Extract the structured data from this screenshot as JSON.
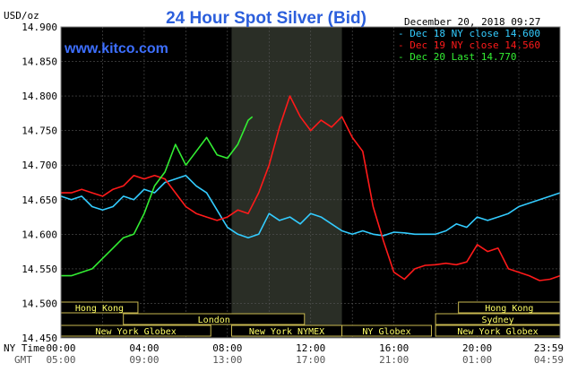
{
  "chart_data": {
    "type": "line",
    "title": "24 Hour Spot Silver (Bid)",
    "unit_label": "USD/oz",
    "timestamp": "December 20, 2018 09:27",
    "watermark": "www.kitco.com",
    "ylim": [
      14.45,
      14.9
    ],
    "y_ticks": [
      "14.900",
      "14.850",
      "14.800",
      "14.750",
      "14.700",
      "14.650",
      "14.600",
      "14.550",
      "14.500",
      "14.450"
    ],
    "x_row_label_ny": "NY Time",
    "x_row_label_gmt": "GMT",
    "x_ticks_ny": [
      "00:00",
      "04:00",
      "08:00",
      "12:00",
      "16:00",
      "20:00",
      "23:59"
    ],
    "x_ticks_gmt": [
      "05:00",
      "09:00",
      "13:00",
      "17:00",
      "21:00",
      "01:00",
      "04:59"
    ],
    "sessions": [
      {
        "name": "Hong Kong",
        "start": 0,
        "end": 3.7,
        "row": 1
      },
      {
        "name": "London",
        "start": 3,
        "end": 11.7,
        "row": 2
      },
      {
        "name": "New York Globex",
        "start": 0,
        "end": 7.2,
        "row": 3
      },
      {
        "name": "New York NYMEX",
        "start": 8.2,
        "end": 13.5,
        "row": 3
      },
      {
        "name": "NY Globex",
        "start": 13.5,
        "end": 17.8,
        "row": 3
      },
      {
        "name": "Hong Kong",
        "start": 19.1,
        "end": 23.98,
        "row": 1
      },
      {
        "name": "Sydney",
        "start": 18,
        "end": 23.98,
        "row": 2
      },
      {
        "name": "New York Globex",
        "start": 18,
        "end": 23.98,
        "row": 3
      }
    ],
    "series": [
      {
        "name": "Dec 18 NY close 14.600",
        "color": "#33ccff",
        "x": [
          0,
          0.5,
          1,
          1.5,
          2,
          2.5,
          3,
          3.5,
          4,
          4.5,
          5,
          5.5,
          6,
          6.5,
          7,
          7.5,
          8,
          8.5,
          9,
          9.5,
          10,
          10.5,
          11,
          11.5,
          12,
          12.5,
          13,
          13.5,
          14,
          14.5,
          15,
          15.5,
          16,
          16.5,
          17,
          17.5,
          18,
          18.5,
          19,
          19.5,
          20,
          20.5,
          21,
          21.5,
          22,
          22.5,
          23,
          23.5,
          23.98
        ],
        "values": [
          14.655,
          14.65,
          14.655,
          14.64,
          14.635,
          14.64,
          14.655,
          14.65,
          14.665,
          14.66,
          14.675,
          14.68,
          14.685,
          14.67,
          14.66,
          14.635,
          14.61,
          14.6,
          14.595,
          14.6,
          14.63,
          14.62,
          14.625,
          14.615,
          14.63,
          14.625,
          14.615,
          14.605,
          14.6,
          14.605,
          14.6,
          14.598,
          14.603,
          14.602,
          14.6,
          14.6,
          14.6,
          14.605,
          14.615,
          14.61,
          14.625,
          14.62,
          14.625,
          14.63,
          14.64,
          14.645,
          14.65,
          14.655,
          14.66
        ]
      },
      {
        "name": "Dec 19 NY close 14.560",
        "color": "#ff1a1a",
        "x": [
          0,
          0.5,
          1,
          1.5,
          2,
          2.5,
          3,
          3.5,
          4,
          4.5,
          5,
          5.5,
          6,
          6.5,
          7,
          7.5,
          8,
          8.5,
          9,
          9.5,
          10,
          10.5,
          11,
          11.5,
          12,
          12.5,
          13,
          13.5,
          14,
          14.5,
          15,
          15.5,
          16,
          16.5,
          17,
          17.5,
          18,
          18.5,
          19,
          19.5,
          20,
          20.5,
          21,
          21.5,
          22,
          22.5,
          23,
          23.5,
          23.98
        ],
        "values": [
          14.66,
          14.66,
          14.665,
          14.66,
          14.655,
          14.665,
          14.67,
          14.685,
          14.68,
          14.685,
          14.68,
          14.66,
          14.64,
          14.63,
          14.625,
          14.62,
          14.625,
          14.635,
          14.63,
          14.66,
          14.7,
          14.755,
          14.8,
          14.77,
          14.75,
          14.765,
          14.755,
          14.77,
          14.74,
          14.72,
          14.64,
          14.59,
          14.545,
          14.535,
          14.55,
          14.555,
          14.556,
          14.558,
          14.556,
          14.56,
          14.585,
          14.575,
          14.58,
          14.55,
          14.545,
          14.54,
          14.533,
          14.535,
          14.54
        ]
      },
      {
        "name": "Dec 20 Last 14.770",
        "color": "#33ee33",
        "x": [
          0,
          0.5,
          1,
          1.5,
          2,
          2.5,
          3,
          3.5,
          4,
          4.5,
          5,
          5.5,
          6,
          6.5,
          7,
          7.5,
          8,
          8.5,
          9,
          9.2
        ],
        "values": [
          14.54,
          14.54,
          14.545,
          14.55,
          14.565,
          14.58,
          14.595,
          14.6,
          14.63,
          14.67,
          14.69,
          14.73,
          14.7,
          14.72,
          14.74,
          14.715,
          14.71,
          14.73,
          14.765,
          14.77
        ]
      }
    ]
  }
}
